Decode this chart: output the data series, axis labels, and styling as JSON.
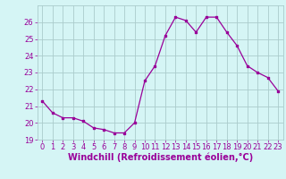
{
  "x": [
    0,
    1,
    2,
    3,
    4,
    5,
    6,
    7,
    8,
    9,
    10,
    11,
    12,
    13,
    14,
    15,
    16,
    17,
    18,
    19,
    20,
    21,
    22,
    23
  ],
  "y": [
    21.3,
    20.6,
    20.3,
    20.3,
    20.1,
    19.7,
    19.6,
    19.4,
    19.4,
    20.0,
    22.5,
    23.4,
    25.2,
    26.3,
    26.1,
    25.4,
    26.3,
    26.3,
    25.4,
    24.6,
    23.4,
    23.0,
    22.7,
    21.9
  ],
  "line_color": "#990099",
  "marker": "s",
  "marker_size": 2.0,
  "bg_color": "#d5f5f5",
  "grid_color": "#aacccc",
  "tick_color": "#990099",
  "xlabel": "Windchill (Refroidissement éolien,°C)",
  "xlabel_color": "#990099",
  "ylim": [
    19,
    27
  ],
  "xlim": [
    -0.5,
    23.5
  ],
  "yticks": [
    19,
    20,
    21,
    22,
    23,
    24,
    25,
    26
  ],
  "xticks": [
    0,
    1,
    2,
    3,
    4,
    5,
    6,
    7,
    8,
    9,
    10,
    11,
    12,
    13,
    14,
    15,
    16,
    17,
    18,
    19,
    20,
    21,
    22,
    23
  ],
  "label_fontsize": 6.5,
  "tick_fontsize": 6.0,
  "xlabel_fontsize": 7.0
}
